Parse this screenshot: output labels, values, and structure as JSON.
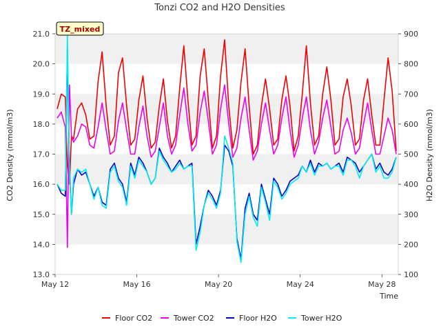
{
  "chart_data": {
    "type": "line",
    "title": "Tonzi CO2 and H2O Densities",
    "badge": "TZ_mixed",
    "xlabel": "Time",
    "ylabel_left": "CO2 Density (mmol/m3)",
    "ylabel_right": "H2O Density (mmol/m3)",
    "x_ticks": [
      "May 12",
      "May 16",
      "May 20",
      "May 24",
      "May 28"
    ],
    "x_tick_days": [
      0,
      4,
      8,
      12,
      16
    ],
    "xlim_days": [
      0,
      16.8
    ],
    "ylim_left": [
      13.0,
      21.0
    ],
    "yticks_left": [
      "13.0",
      "14.0",
      "15.0",
      "16.0",
      "17.0",
      "18.0",
      "19.0",
      "20.0",
      "21.0"
    ],
    "ylim_right": [
      100,
      900
    ],
    "yticks_right": [
      "100",
      "200",
      "300",
      "400",
      "500",
      "600",
      "700",
      "800",
      "900"
    ],
    "grid": "horizontal bands",
    "legend_position": "bottom",
    "colors": {
      "floor_co2": "#ee0000",
      "tower_co2": "#ee00ee",
      "floor_h2o": "#0000cc",
      "tower_h2o": "#00eeee",
      "band": "#f0f0f0",
      "badge_bg": "#ffffcc"
    },
    "series": [
      {
        "name": "Floor CO2",
        "axis": "left",
        "color_key": "floor_co2",
        "x": [
          0.1,
          0.3,
          0.5,
          0.6,
          0.7,
          0.8,
          0.9,
          1.1,
          1.3,
          1.5,
          1.7,
          1.9,
          2.1,
          2.3,
          2.5,
          2.7,
          2.9,
          3.1,
          3.3,
          3.5,
          3.7,
          3.9,
          4.1,
          4.3,
          4.5,
          4.7,
          4.9,
          5.1,
          5.3,
          5.5,
          5.7,
          5.9,
          6.1,
          6.3,
          6.5,
          6.7,
          6.9,
          7.1,
          7.3,
          7.5,
          7.7,
          7.9,
          8.1,
          8.3,
          8.5,
          8.7,
          8.9,
          9.1,
          9.3,
          9.5,
          9.7,
          9.9,
          10.1,
          10.3,
          10.5,
          10.7,
          10.9,
          11.1,
          11.3,
          11.5,
          11.7,
          11.9,
          12.1,
          12.3,
          12.5,
          12.7,
          12.9,
          13.1,
          13.3,
          13.5,
          13.7,
          13.9,
          14.1,
          14.3,
          14.5,
          14.7,
          14.9,
          15.1,
          15.3,
          15.5,
          15.7,
          15.9,
          16.1,
          16.3,
          16.5,
          16.7
        ],
        "y": [
          18.5,
          19.0,
          18.9,
          16.6,
          16.0,
          17.6,
          17.5,
          18.5,
          18.7,
          18.3,
          17.5,
          17.6,
          19.4,
          20.4,
          18.6,
          17.3,
          17.6,
          19.7,
          20.2,
          18.6,
          17.3,
          17.5,
          18.8,
          19.6,
          18.2,
          17.2,
          17.4,
          18.6,
          19.5,
          18.1,
          17.2,
          17.6,
          19.2,
          20.6,
          18.8,
          17.3,
          17.6,
          19.6,
          20.5,
          18.8,
          17.2,
          17.6,
          19.6,
          20.8,
          18.6,
          17.2,
          17.8,
          19.4,
          20.5,
          18.6,
          17.0,
          17.3,
          18.6,
          19.5,
          18.5,
          17.3,
          17.5,
          18.8,
          19.6,
          18.6,
          17.1,
          17.6,
          19.0,
          20.6,
          18.7,
          17.3,
          17.6,
          19.0,
          19.9,
          18.8,
          17.3,
          17.5,
          18.9,
          19.5,
          18.6,
          17.3,
          17.5,
          18.8,
          19.5,
          18.3,
          17.3,
          17.3,
          18.8,
          20.2,
          19.1,
          17.1
        ]
      },
      {
        "name": "Tower CO2",
        "axis": "left",
        "color_key": "tower_co2",
        "x": [
          0.1,
          0.3,
          0.5,
          0.6,
          0.7,
          0.8,
          0.9,
          1.1,
          1.3,
          1.5,
          1.7,
          1.9,
          2.1,
          2.3,
          2.5,
          2.7,
          2.9,
          3.1,
          3.3,
          3.5,
          3.7,
          3.9,
          4.1,
          4.3,
          4.5,
          4.7,
          4.9,
          5.1,
          5.3,
          5.5,
          5.7,
          5.9,
          6.1,
          6.3,
          6.5,
          6.7,
          6.9,
          7.1,
          7.3,
          7.5,
          7.7,
          7.9,
          8.1,
          8.3,
          8.5,
          8.7,
          8.9,
          9.1,
          9.3,
          9.5,
          9.7,
          9.9,
          10.1,
          10.3,
          10.5,
          10.7,
          10.9,
          11.1,
          11.3,
          11.5,
          11.7,
          11.9,
          12.1,
          12.3,
          12.5,
          12.7,
          12.9,
          13.1,
          13.3,
          13.5,
          13.7,
          13.9,
          14.1,
          14.3,
          14.5,
          14.7,
          14.9,
          15.1,
          15.3,
          15.5,
          15.7,
          15.9,
          16.1,
          16.3,
          16.5,
          16.7
        ],
        "y": [
          18.2,
          18.4,
          17.9,
          13.9,
          19.3,
          17.6,
          17.4,
          17.6,
          18.0,
          17.9,
          17.3,
          17.2,
          17.9,
          18.7,
          17.8,
          17.0,
          17.1,
          18.1,
          18.7,
          17.8,
          17.0,
          17.0,
          17.9,
          18.6,
          17.6,
          16.9,
          17.1,
          17.9,
          18.7,
          17.6,
          17.0,
          17.3,
          18.3,
          19.2,
          18.0,
          17.1,
          17.3,
          18.4,
          19.1,
          18.1,
          17.0,
          17.3,
          18.5,
          19.3,
          18.0,
          16.9,
          17.2,
          18.2,
          18.9,
          17.8,
          16.8,
          17.1,
          18.0,
          18.7,
          17.8,
          17.0,
          17.3,
          18.2,
          18.9,
          17.8,
          16.9,
          17.3,
          18.2,
          18.9,
          17.8,
          17.0,
          17.4,
          18.2,
          18.8,
          17.9,
          17.0,
          17.1,
          17.8,
          18.2,
          17.7,
          17.0,
          17.2,
          18.0,
          18.7,
          17.8,
          17.0,
          17.0,
          17.6,
          18.2,
          17.8,
          17.0
        ]
      },
      {
        "name": "Floor H2O",
        "axis": "right",
        "color_key": "floor_h2o",
        "x": [
          0.1,
          0.3,
          0.5,
          0.6,
          0.7,
          0.8,
          0.9,
          1.1,
          1.3,
          1.5,
          1.7,
          1.9,
          2.1,
          2.3,
          2.5,
          2.7,
          2.9,
          3.1,
          3.3,
          3.5,
          3.7,
          3.9,
          4.1,
          4.3,
          4.5,
          4.7,
          4.9,
          5.1,
          5.3,
          5.5,
          5.7,
          5.9,
          6.1,
          6.3,
          6.5,
          6.7,
          6.9,
          7.1,
          7.3,
          7.5,
          7.7,
          7.9,
          8.1,
          8.3,
          8.5,
          8.7,
          8.9,
          9.1,
          9.3,
          9.5,
          9.7,
          9.9,
          10.1,
          10.3,
          10.5,
          10.7,
          10.9,
          11.1,
          11.3,
          11.5,
          11.7,
          11.9,
          12.1,
          12.3,
          12.5,
          12.7,
          12.9,
          13.1,
          13.3,
          13.5,
          13.7,
          13.9,
          14.1,
          14.3,
          14.5,
          14.7,
          14.9,
          15.1,
          15.3,
          15.5,
          15.7,
          15.9,
          16.1,
          16.3,
          16.5,
          16.7
        ],
        "y": [
          400,
          370,
          360,
          850,
          450,
          300,
          400,
          450,
          430,
          440,
          400,
          360,
          390,
          340,
          330,
          450,
          470,
          420,
          400,
          340,
          470,
          430,
          490,
          470,
          440,
          400,
          420,
          520,
          490,
          470,
          440,
          460,
          480,
          450,
          460,
          470,
          200,
          260,
          330,
          380,
          360,
          330,
          380,
          530,
          510,
          460,
          220,
          150,
          320,
          370,
          300,
          280,
          400,
          350,
          300,
          420,
          400,
          360,
          380,
          410,
          420,
          430,
          460,
          440,
          480,
          440,
          470,
          460,
          470,
          450,
          460,
          470,
          440,
          490,
          480,
          470,
          440,
          460,
          480,
          500,
          450,
          470,
          440,
          430,
          450,
          490
        ]
      },
      {
        "name": "Tower H2O",
        "axis": "right",
        "color_key": "tower_h2o",
        "x": [
          0.1,
          0.3,
          0.5,
          0.6,
          0.7,
          0.8,
          0.9,
          1.1,
          1.3,
          1.5,
          1.7,
          1.9,
          2.1,
          2.3,
          2.5,
          2.7,
          2.9,
          3.1,
          3.3,
          3.5,
          3.7,
          3.9,
          4.1,
          4.3,
          4.5,
          4.7,
          4.9,
          5.1,
          5.3,
          5.5,
          5.7,
          5.9,
          6.1,
          6.3,
          6.5,
          6.7,
          6.9,
          7.1,
          7.3,
          7.5,
          7.7,
          7.9,
          8.1,
          8.3,
          8.5,
          8.7,
          8.9,
          9.1,
          9.3,
          9.5,
          9.7,
          9.9,
          10.1,
          10.3,
          10.5,
          10.7,
          10.9,
          11.1,
          11.3,
          11.5,
          11.7,
          11.9,
          12.1,
          12.3,
          12.5,
          12.7,
          12.9,
          13.1,
          13.3,
          13.5,
          13.7,
          13.9,
          14.1,
          14.3,
          14.5,
          14.7,
          14.9,
          15.1,
          15.3,
          15.5,
          15.7,
          15.9,
          16.1,
          16.3,
          16.5,
          16.7
        ],
        "y": [
          400,
          380,
          380,
          900,
          430,
          300,
          420,
          450,
          440,
          450,
          400,
          350,
          390,
          330,
          320,
          440,
          460,
          410,
          390,
          330,
          460,
          420,
          480,
          460,
          440,
          400,
          420,
          510,
          480,
          460,
          440,
          450,
          470,
          450,
          460,
          460,
          180,
          240,
          330,
          370,
          350,
          320,
          370,
          560,
          520,
          470,
          210,
          140,
          300,
          360,
          290,
          260,
          390,
          340,
          280,
          410,
          390,
          350,
          370,
          400,
          410,
          420,
          460,
          440,
          470,
          430,
          460,
          460,
          470,
          450,
          460,
          460,
          430,
          480,
          480,
          460,
          420,
          460,
          480,
          500,
          440,
          460,
          420,
          420,
          440,
          490
        ]
      }
    ]
  }
}
